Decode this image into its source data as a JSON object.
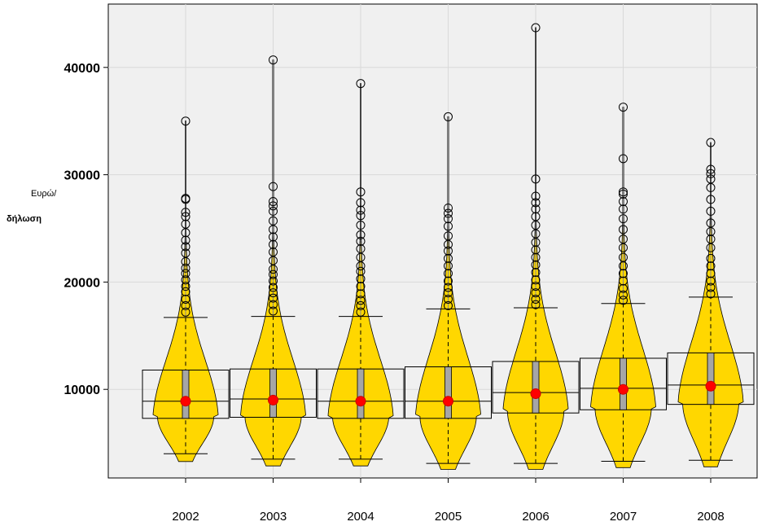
{
  "chart_data": {
    "type": "violin-boxplot",
    "title": "",
    "xlabel": "",
    "ylabel_line1": "Ευρώ/",
    "ylabel_line2": "δήλωση",
    "ylim": [
      0,
      44500
    ],
    "yticks": [
      "10000",
      "20000",
      "30000",
      "40000"
    ],
    "ytick_values": [
      10000,
      20000,
      30000,
      40000
    ],
    "grid": true,
    "colors": {
      "violin": "#ffd700",
      "mean": "#ff0000",
      "panel": "#f0f0f0",
      "grid": "#d9d9d9",
      "box": "#a6a6a6"
    },
    "categories": [
      "2002",
      "2003",
      "2004",
      "2005",
      "2006",
      "2007",
      "2008"
    ],
    "series": [
      {
        "min": 4000,
        "q1": 7300,
        "median": 8900,
        "q3": 11800,
        "whisker_high": 16700,
        "mean": 8900,
        "mode": 7500,
        "max": 35000,
        "outliers": [
          17200,
          17800,
          18400,
          19100,
          19600,
          20200,
          20800,
          21300,
          21900,
          22700,
          23300,
          23900,
          24600,
          25400,
          26100,
          26500,
          27700,
          27800,
          35000
        ]
      },
      {
        "min": 3500,
        "q1": 7400,
        "median": 9100,
        "q3": 11900,
        "whisker_high": 16800,
        "mean": 9000,
        "mode": 7500,
        "max": 40700,
        "outliers": [
          17300,
          17900,
          18500,
          19000,
          19500,
          20100,
          20700,
          21200,
          22000,
          22800,
          23500,
          24200,
          24900,
          25700,
          26600,
          27100,
          27500,
          28900,
          40700
        ]
      },
      {
        "min": 3500,
        "q1": 7300,
        "median": 8900,
        "q3": 11900,
        "whisker_high": 16800,
        "mean": 8900,
        "mode": 7500,
        "max": 38500,
        "outliers": [
          17200,
          17800,
          18300,
          18900,
          19600,
          20300,
          21000,
          21500,
          22300,
          23100,
          23800,
          24400,
          25300,
          26200,
          26700,
          27400,
          28400,
          38500
        ]
      },
      {
        "min": 3100,
        "q1": 7300,
        "median": 8900,
        "q3": 12100,
        "whisker_high": 17500,
        "mean": 8900,
        "mode": 7500,
        "max": 35400,
        "outliers": [
          17800,
          18400,
          19000,
          19500,
          20100,
          20800,
          21500,
          22200,
          22900,
          23500,
          24300,
          25200,
          25900,
          26400,
          26900,
          35400
        ]
      },
      {
        "min": 3100,
        "q1": 7800,
        "median": 9700,
        "q3": 12600,
        "whisker_high": 17600,
        "mean": 9600,
        "mode": 8000,
        "max": 43700,
        "outliers": [
          17900,
          18400,
          19000,
          19600,
          20200,
          20900,
          21600,
          22300,
          23000,
          23700,
          24500,
          25300,
          26100,
          26800,
          27400,
          28000,
          29600,
          43700
        ]
      },
      {
        "min": 3300,
        "q1": 8100,
        "median": 10100,
        "q3": 12900,
        "whisker_high": 18000,
        "mean": 10000,
        "mode": 8300,
        "max": 36300,
        "outliers": [
          18300,
          18800,
          19400,
          20100,
          20800,
          21500,
          22300,
          23200,
          24000,
          24900,
          25900,
          26800,
          27500,
          28200,
          28400,
          31500,
          36300
        ]
      },
      {
        "min": 3400,
        "q1": 8600,
        "median": 10400,
        "q3": 13400,
        "whisker_high": 18600,
        "mean": 10300,
        "mode": 8800,
        "max": 33000,
        "outliers": [
          18900,
          19500,
          20100,
          20800,
          21500,
          22200,
          23200,
          24000,
          24700,
          25500,
          26600,
          27700,
          28800,
          29600,
          30100,
          30500,
          33000
        ]
      }
    ]
  }
}
